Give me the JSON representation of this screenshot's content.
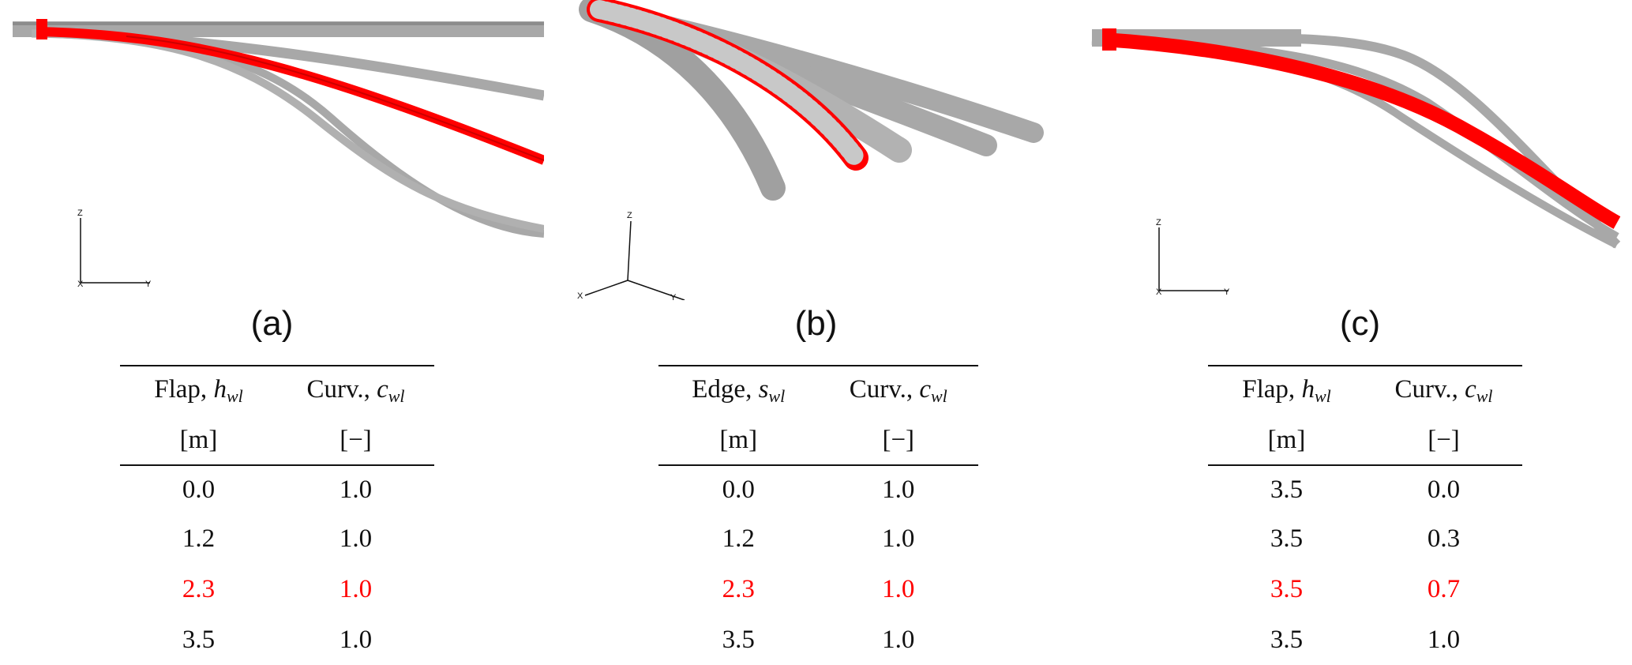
{
  "colors": {
    "blade": "#a8a8a8",
    "highlight": "#ff0000",
    "text": "#111111"
  },
  "panels": [
    {
      "caption": "(a)",
      "axes": {
        "up": "Z",
        "right": "Y",
        "origin": "X"
      },
      "table": {
        "headers": [
          {
            "label": "Flap,",
            "symbol": "h",
            "subscript": "wl",
            "unit": "[m]"
          },
          {
            "label": "Curv.,",
            "symbol": "c",
            "subscript": "wl",
            "unit": "[−]"
          }
        ],
        "rows": [
          {
            "v1": "0.0",
            "v2": "1.0",
            "highlight": false
          },
          {
            "v1": "1.2",
            "v2": "1.0",
            "highlight": false
          },
          {
            "v1": "2.3",
            "v2": "1.0",
            "highlight": true
          },
          {
            "v1": "3.5",
            "v2": "1.0",
            "highlight": false
          }
        ]
      }
    },
    {
      "caption": "(b)",
      "axes": {
        "up": "Z",
        "right": "Y",
        "left": "X"
      },
      "table": {
        "headers": [
          {
            "label": "Edge,",
            "symbol": "s",
            "subscript": "wl",
            "unit": "[m]"
          },
          {
            "label": "Curv.,",
            "symbol": "c",
            "subscript": "wl",
            "unit": "[−]"
          }
        ],
        "rows": [
          {
            "v1": "0.0",
            "v2": "1.0",
            "highlight": false
          },
          {
            "v1": "1.2",
            "v2": "1.0",
            "highlight": false
          },
          {
            "v1": "2.3",
            "v2": "1.0",
            "highlight": true
          },
          {
            "v1": "3.5",
            "v2": "1.0",
            "highlight": false
          }
        ]
      }
    },
    {
      "caption": "(c)",
      "axes": {
        "up": "Z",
        "right": "Y",
        "origin": "X"
      },
      "table": {
        "headers": [
          {
            "label": "Flap,",
            "symbol": "h",
            "subscript": "wl",
            "unit": "[m]"
          },
          {
            "label": "Curv.,",
            "symbol": "c",
            "subscript": "wl",
            "unit": "[−]"
          }
        ],
        "rows": [
          {
            "v1": "3.5",
            "v2": "0.0",
            "highlight": false
          },
          {
            "v1": "3.5",
            "v2": "0.3",
            "highlight": false
          },
          {
            "v1": "3.5",
            "v2": "0.7",
            "highlight": true
          },
          {
            "v1": "3.5",
            "v2": "1.0",
            "highlight": false
          }
        ]
      }
    }
  ]
}
